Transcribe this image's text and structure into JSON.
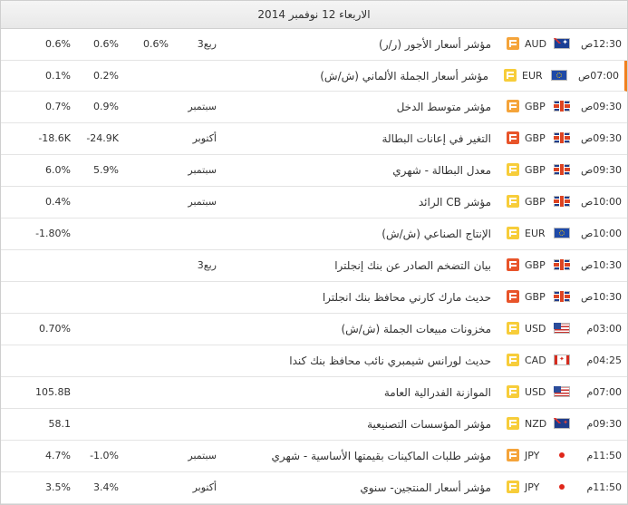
{
  "header": {
    "date": "الاربعاء 12 نوفمبر 2014"
  },
  "rows": [
    {
      "time": "12:30ص",
      "flag": "aud",
      "currency": "AUD",
      "importance": "medium",
      "event": "مؤشر أسعار الأجور (ر/ر)",
      "period": "ربع3",
      "actual": "0.6%",
      "forecast": "0.6%",
      "previous": "0.6%"
    },
    {
      "time": "07:00ص",
      "flag": "eur",
      "currency": "EUR",
      "importance": "low",
      "event": "مؤشر أسعار الجملة الألماني (ش/ش)",
      "period": "",
      "actual": "",
      "forecast": "0.2%",
      "previous": "0.1%",
      "active": true
    },
    {
      "time": "09:30ص",
      "flag": "gbp",
      "currency": "GBP",
      "importance": "medium",
      "event": "مؤشر متوسط الدخل",
      "period": "سبتمبر",
      "actual": "",
      "forecast": "0.9%",
      "previous": "0.7%"
    },
    {
      "time": "09:30ص",
      "flag": "gbp",
      "currency": "GBP",
      "importance": "high",
      "event": "التغير في إعانات البطالة",
      "period": "أكتوبر",
      "actual": "",
      "forecast": "-24.9K",
      "previous": "-18.6K"
    },
    {
      "time": "09:30ص",
      "flag": "gbp",
      "currency": "GBP",
      "importance": "low",
      "event": "معدل البطالة - شهري",
      "period": "سبتمبر",
      "actual": "",
      "forecast": "5.9%",
      "previous": "6.0%"
    },
    {
      "time": "10:00ص",
      "flag": "gbp",
      "currency": "GBP",
      "importance": "low",
      "event": "مؤشر CB الرائد",
      "period": "سبتمبر",
      "actual": "",
      "forecast": "",
      "previous": "0.4%"
    },
    {
      "time": "10:00ص",
      "flag": "eur",
      "currency": "EUR",
      "importance": "low",
      "event": "الإنتاج الصناعي (ش/ش)",
      "period": "",
      "actual": "",
      "forecast": "",
      "previous": "-1.80%"
    },
    {
      "time": "10:30ص",
      "flag": "gbp",
      "currency": "GBP",
      "importance": "high",
      "event": "بيان التضخم الصادر عن بنك إنجلترا",
      "period": "ربع3",
      "actual": "",
      "forecast": "",
      "previous": ""
    },
    {
      "time": "10:30ص",
      "flag": "gbp",
      "currency": "GBP",
      "importance": "high",
      "event": "حديث مارك كارني محافظ بنك انجلترا",
      "period": "",
      "actual": "",
      "forecast": "",
      "previous": ""
    },
    {
      "time": "03:00م",
      "flag": "usd",
      "currency": "USD",
      "importance": "low",
      "event": "مخزونات مبيعات الجملة (ش/ش)",
      "period": "",
      "actual": "",
      "forecast": "",
      "previous": "0.70%"
    },
    {
      "time": "04:25م",
      "flag": "cad",
      "currency": "CAD",
      "importance": "low",
      "event": "حديث لورانس شيمبري نائب محافظ بنك كندا",
      "period": "",
      "actual": "",
      "forecast": "",
      "previous": ""
    },
    {
      "time": "07:00م",
      "flag": "usd",
      "currency": "USD",
      "importance": "low",
      "event": "الموازنة الفدرالية العامة",
      "period": "",
      "actual": "",
      "forecast": "",
      "previous": "105.8B"
    },
    {
      "time": "09:30م",
      "flag": "nzd",
      "currency": "NZD",
      "importance": "low",
      "event": "مؤشر المؤسسات التصنيعية",
      "period": "",
      "actual": "",
      "forecast": "",
      "previous": "58.1"
    },
    {
      "time": "11:50م",
      "flag": "jpy",
      "currency": "JPY",
      "importance": "medium",
      "event": "مؤشر طلبات الماكينات بقيمتها الأساسية - شهري",
      "period": "سبتمبر",
      "actual": "",
      "forecast": "-1.0%",
      "previous": "4.7%"
    },
    {
      "time": "11:50م",
      "flag": "jpy",
      "currency": "JPY",
      "importance": "low",
      "event": "مؤشر أسعار المنتجين- سنوي",
      "period": "أكتوبر",
      "actual": "",
      "forecast": "3.4%",
      "previous": "3.5%"
    }
  ]
}
